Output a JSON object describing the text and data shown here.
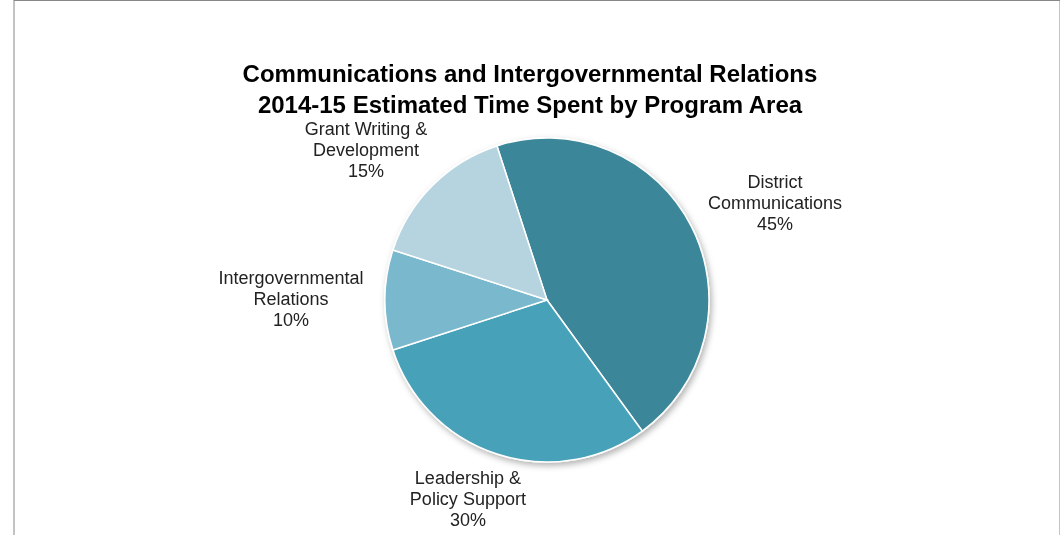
{
  "chart_data": {
    "type": "pie",
    "title": "Communications and Intergovernmental Relations",
    "subtitle": "2014-15 Estimated Time Spent by Program Area",
    "categories": [
      "District Communications",
      "Leadership & Policy Support",
      "Intergovernmental Relations",
      "Grant Writing & Development"
    ],
    "values": [
      45,
      30,
      10,
      15
    ],
    "value_labels": [
      "45%",
      "30%",
      "10%",
      "15%"
    ],
    "colors": [
      "#3a8799",
      "#46a1b8",
      "#7ab8cd",
      "#b5d4e0"
    ],
    "legend": false
  }
}
